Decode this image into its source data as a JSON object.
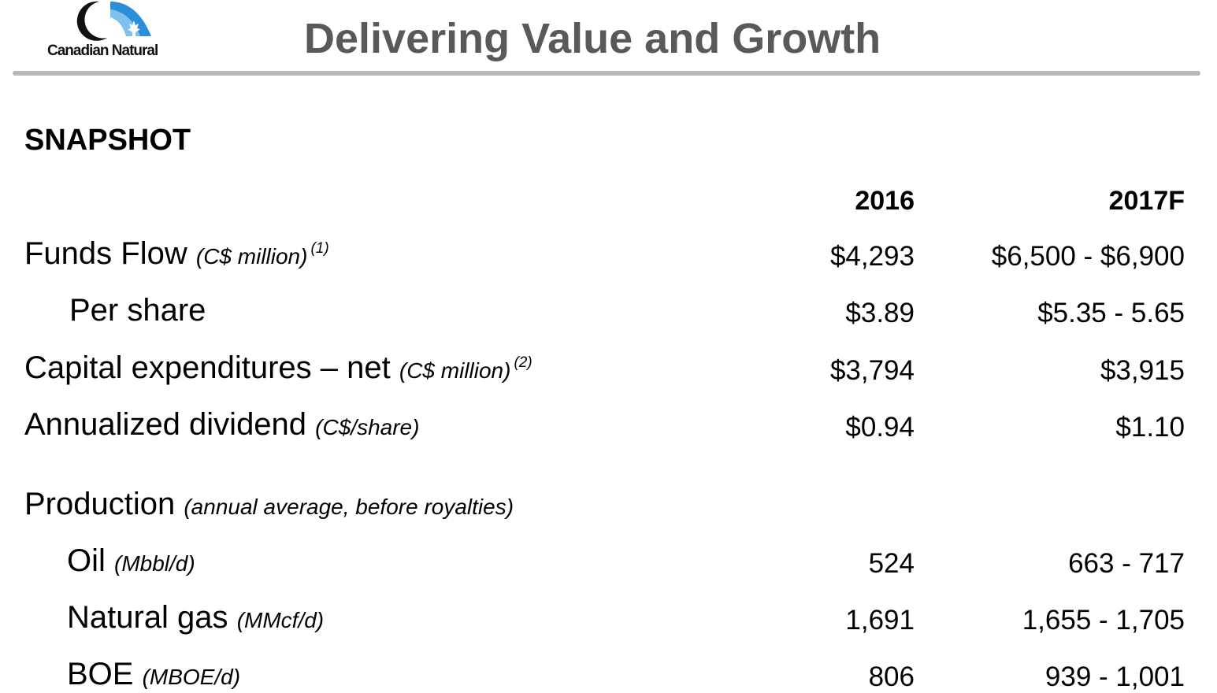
{
  "logo": {
    "text": "Canadian Natural"
  },
  "title": "Delivering Value and Growth",
  "section_title": "SNAPSHOT",
  "columns": [
    "2016",
    "2017F"
  ],
  "rows": [
    {
      "label": "Funds Flow",
      "unit": "(C$ million)",
      "note": "(1)",
      "v2016": "$4,293",
      "v2017": "$6,500 - $6,900"
    },
    {
      "label": "Per share",
      "unit": "",
      "note": "",
      "v2016": "$3.89",
      "v2017": "$5.35 - 5.65"
    },
    {
      "label": "Capital expenditures – net",
      "unit": "(C$ million)",
      "note": "(2)",
      "v2016": "$3,794",
      "v2017": "$3,915"
    },
    {
      "label": "Annualized dividend",
      "unit": "(C$/share)",
      "note": "",
      "v2016": "$0.94",
      "v2017": "$1.10"
    },
    {
      "label": "Production",
      "unit": "(annual average, before royalties)",
      "note": "",
      "v2016": "",
      "v2017": ""
    },
    {
      "label": "Oil",
      "unit": "(Mbbl/d)",
      "note": "",
      "v2016": "524",
      "v2017": "663 - 717"
    },
    {
      "label": "Natural gas",
      "unit": "(MMcf/d)",
      "note": "",
      "v2016": "1,691",
      "v2017": "1,655 - 1,705"
    },
    {
      "label": "BOE",
      "unit": "(MBOE/d)",
      "note": "",
      "v2016": "806",
      "v2017": "939 - 1,001"
    }
  ],
  "colors": {
    "title": "#595959",
    "rule": "#b7b7b7",
    "logo_blue": "#2a8fd6",
    "logo_dark": "#111111"
  }
}
